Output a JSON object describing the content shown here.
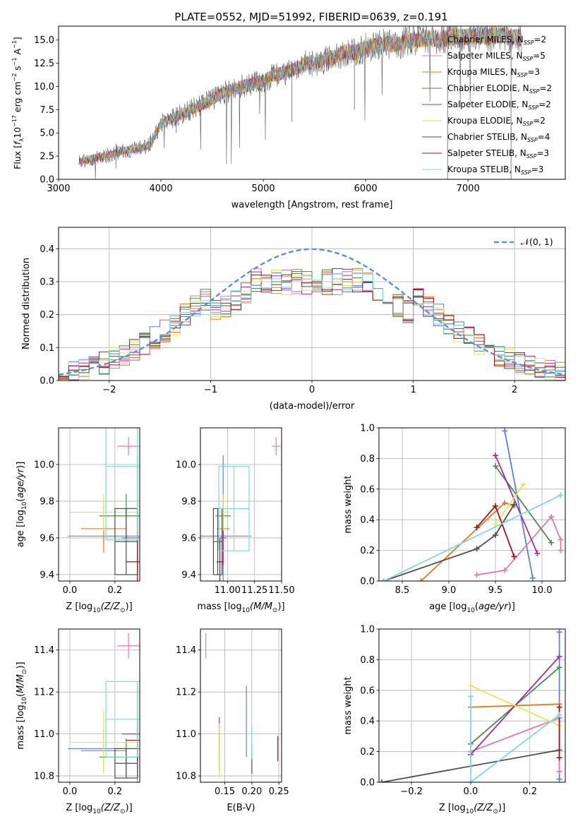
{
  "title": "PLATE=0552, MJD=51992, FIBERID=0639, z=0.191",
  "colors": {
    "Chabrier MILES": "#5b80d6",
    "Salpeter MILES": "#e47aa8",
    "Kroupa MILES": "#e07a22",
    "Chabrier ELODIE": "#4a8a50",
    "Salpeter ELODIE": "#9a30a8",
    "Kroupa ELODIE": "#dfe855",
    "Chabrier STELIB": "#4d4d4d",
    "Salpeter STELIB": "#a0141c",
    "Kroupa STELIB": "#7fd8dc",
    "normal": "#5b8fd6"
  },
  "chart_data": [
    {
      "type": "line",
      "panel": "spectrum",
      "xlabel": "wavelength [Angstrom, rest frame]",
      "ylabel": "Flux [f_λ 10^-17 erg cm^-2 s^-1 A^-1]",
      "xlim": [
        3000,
        7950
      ],
      "ylim": [
        0,
        16.5
      ],
      "xticks": [
        3000,
        4000,
        5000,
        6000,
        7000
      ],
      "yticks": [
        0.0,
        2.5,
        5.0,
        7.5,
        10.0,
        12.5,
        15.0
      ],
      "xtick_labels": [
        "3000",
        "4000",
        "5000",
        "6000",
        "7000"
      ],
      "ytick_labels": [
        "0.0",
        "2.5",
        "5.0",
        "7.5",
        "10.0",
        "12.5",
        "15.0"
      ],
      "spectrum_x": [
        3200,
        3300,
        3400,
        3500,
        3600,
        3700,
        3800,
        3900,
        4000,
        4100,
        4200,
        4300,
        4400,
        4500,
        4600,
        4700,
        4800,
        4900,
        5000,
        5100,
        5200,
        5300,
        5400,
        5500,
        5600,
        5700,
        5800,
        5900,
        6000,
        6100,
        6200,
        6300,
        6400,
        6500,
        6600,
        6700,
        6800,
        6900,
        7000,
        7100,
        7200,
        7300,
        7400
      ],
      "spectrum_y": [
        1.8,
        2.2,
        2.4,
        2.6,
        3.0,
        3.2,
        3.3,
        3.8,
        6.0,
        6.5,
        7.0,
        7.5,
        8.0,
        8.6,
        9.3,
        9.7,
        10.0,
        10.3,
        10.6,
        11.2,
        11.5,
        11.8,
        12.4,
        12.5,
        12.9,
        13.2,
        13.7,
        13.6,
        14.2,
        14.4,
        14.6,
        14.4,
        14.9,
        15.0,
        15.2,
        15.0,
        15.2,
        15.4,
        15.3,
        15.5,
        15.4,
        15.6,
        15.3
      ],
      "legend_location": "upper right",
      "legend": [
        {
          "label": "Chabrier MILES, N_SSP=2",
          "pre": "Chabrier MILES, N",
          "sub": "SSP",
          "post": "=2"
        },
        {
          "label": "Salpeter MILES, N_SSP=5",
          "pre": "Salpeter MILES, N",
          "sub": "SSP",
          "post": "=5"
        },
        {
          "label": "Kroupa MILES, N_SSP=3",
          "pre": "Kroupa MILES, N",
          "sub": "SSP",
          "post": "=3"
        },
        {
          "label": "Chabrier ELODIE, N_SSP=2",
          "pre": "Chabrier ELODIE, N",
          "sub": "SSP",
          "post": "=2"
        },
        {
          "label": "Salpeter ELODIE, N_SSP=2",
          "pre": "Salpeter ELODIE, N",
          "sub": "SSP",
          "post": "=2"
        },
        {
          "label": "Kroupa ELODIE, N_SSP=2",
          "pre": "Kroupa ELODIE, N",
          "sub": "SSP",
          "post": "=2"
        },
        {
          "label": "Chabrier STELIB, N_SSP=4",
          "pre": "Chabrier STELIB, N",
          "sub": "SSP",
          "post": "=4"
        },
        {
          "label": "Salpeter STELIB, N_SSP=3",
          "pre": "Salpeter STELIB, N",
          "sub": "SSP",
          "post": "=3"
        },
        {
          "label": "Kroupa STELIB, N_SSP=3",
          "pre": "Kroupa STELIB, N",
          "sub": "SSP",
          "post": "=3"
        }
      ]
    },
    {
      "type": "histogram",
      "panel": "residuals",
      "xlabel": "(data-model)/error",
      "ylabel": "Normed distribution",
      "xlim": [
        -2.5,
        2.5
      ],
      "ylim": [
        0,
        0.465
      ],
      "xticks": [
        -2,
        -1,
        0,
        1,
        2
      ],
      "yticks": [
        0.0,
        0.1,
        0.2,
        0.3,
        0.4
      ],
      "xtick_labels": [
        "−2",
        "−1",
        "0",
        "1",
        "2"
      ],
      "ytick_labels": [
        "0.0",
        "0.1",
        "0.2",
        "0.3",
        "0.4"
      ],
      "grid": true,
      "legend": "𝒩(0, 1)",
      "bin_width": 0.1
    },
    {
      "type": "scatter",
      "panel": "age-vs-Z",
      "xlabel_pre": "Z [log",
      "xlabel_sub": "10",
      "xlabel_post": "(Z/Z",
      "xlabel_end": ")]",
      "ylabel": "age  [log10(age/yr)]",
      "xlim": [
        -0.05,
        0.31
      ],
      "ylim": [
        9.365,
        10.2
      ],
      "xticks": [
        0.0,
        0.2
      ],
      "yticks": [
        9.4,
        9.6,
        9.8,
        10.0
      ],
      "xtick_labels": [
        "0.0",
        "0.2"
      ],
      "ytick_labels": [
        "9.4",
        "9.6",
        "9.8",
        "10.0"
      ],
      "points": [
        {
          "model": "Chabrier MILES",
          "x": 0.3,
          "y": 9.61,
          "xerr": 0.31,
          "yerr": 0.44
        },
        {
          "model": "Salpeter MILES",
          "x": 0.26,
          "y": 10.1,
          "xerr": 0.05,
          "yerr": 0.05
        },
        {
          "model": "Kroupa MILES",
          "x": 0.15,
          "y": 9.65,
          "xerr": 0.1,
          "yerr": 0.13
        },
        {
          "model": "Chabrier ELODIE",
          "x": 0.25,
          "y": 9.72,
          "xerr": 0.12,
          "yerr": 0.12
        },
        {
          "model": "Salpeter ELODIE",
          "x": 0.3,
          "y": 9.6,
          "xerr": 0.07,
          "yerr": 0.15
        },
        {
          "model": "Kroupa ELODIE",
          "x": 0.15,
          "y": 9.74,
          "xerr": 0.15,
          "yerr": 0.1
        },
        {
          "model": "Chabrier STELIB",
          "x": 0.25,
          "y": 9.58,
          "xerr": 0.05,
          "yerr": 0.18
        },
        {
          "model": "Salpeter STELIB",
          "x": 0.3,
          "y": 9.47,
          "xerr": 0.05,
          "yerr": 0.27
        },
        {
          "model": "Kroupa STELIB",
          "x": 0.3,
          "y": 9.99,
          "xerr": 0.14,
          "yerr": 0.4
        }
      ]
    },
    {
      "type": "scatter",
      "panel": "age-vs-mass",
      "xlabel_pre": "mass [log",
      "xlabel_sub": "10",
      "xlabel_post": "(M/M",
      "xlabel_end": ")]",
      "xlim": [
        10.75,
        11.5
      ],
      "ylim": [
        9.365,
        10.2
      ],
      "xticks": [
        11.0,
        11.25,
        11.5
      ],
      "yticks": [
        9.4,
        9.6,
        9.8,
        10.0
      ],
      "xtick_labels": [
        "11.00",
        "11.25",
        "11.50"
      ],
      "ytick_labels": [
        "9.4",
        "9.6",
        "9.8",
        "10.0"
      ],
      "points": [
        {
          "model": "Chabrier MILES",
          "x": 10.96,
          "y": 9.61,
          "xerr": 0.26,
          "yerr": 0.44
        },
        {
          "model": "Salpeter MILES",
          "x": 11.45,
          "y": 10.1,
          "xerr": 0.04,
          "yerr": 0.05
        },
        {
          "model": "Kroupa MILES",
          "x": 10.96,
          "y": 9.65,
          "xerr": 0.06,
          "yerr": 0.13
        },
        {
          "model": "Chabrier ELODIE",
          "x": 10.96,
          "y": 9.72,
          "xerr": 0.07,
          "yerr": 0.12
        },
        {
          "model": "Salpeter ELODIE",
          "x": 10.96,
          "y": 9.6,
          "xerr": 0.03,
          "yerr": 0.15
        },
        {
          "model": "Kroupa ELODIE",
          "x": 10.96,
          "y": 9.74,
          "xerr": 0.06,
          "yerr": 0.1
        },
        {
          "model": "Chabrier STELIB",
          "x": 10.91,
          "y": 9.58,
          "xerr": 0.04,
          "yerr": 0.18
        },
        {
          "model": "Salpeter STELIB",
          "x": 10.93,
          "y": 9.47,
          "xerr": 0.03,
          "yerr": 0.13
        },
        {
          "model": "Kroupa STELIB",
          "x": 11.06,
          "y": 9.76,
          "xerr": 0.14,
          "yerr": 0.23
        }
      ]
    },
    {
      "type": "line",
      "panel": "mass-weight-vs-age",
      "xlabel": "age  [log10(age/yr)]",
      "ylabel": "mass weight",
      "xlim": [
        8.25,
        10.25
      ],
      "ylim": [
        0,
        1.0
      ],
      "xticks": [
        8.5,
        9.0,
        9.5,
        10.0
      ],
      "yticks": [
        0.0,
        0.2,
        0.4,
        0.6,
        0.8,
        1.0
      ],
      "xtick_labels": [
        "8.5",
        "9.0",
        "9.5",
        "10.0"
      ],
      "ytick_labels": [
        "0.0",
        "0.2",
        "0.4",
        "0.6",
        "0.8",
        "1.0"
      ],
      "grid": true,
      "series": [
        {
          "model": "Chabrier MILES",
          "x": [
            9.6,
            9.9
          ],
          "y": [
            0.98,
            0.02
          ]
        },
        {
          "model": "Salpeter MILES",
          "x": [
            9.3,
            9.6,
            10.1,
            10.2,
            10.2
          ],
          "y": [
            0.04,
            0.07,
            0.42,
            0.27,
            0.2
          ]
        },
        {
          "model": "Kroupa MILES",
          "x": [
            8.7,
            9.6,
            9.7
          ],
          "y": [
            0.0,
            0.51,
            0.49
          ]
        },
        {
          "model": "Chabrier ELODIE",
          "x": [
            9.5,
            10.1
          ],
          "y": [
            0.75,
            0.25
          ]
        },
        {
          "model": "Salpeter ELODIE",
          "x": [
            9.5,
            9.95
          ],
          "y": [
            0.82,
            0.18
          ]
        },
        {
          "model": "Kroupa ELODIE",
          "x": [
            9.5,
            9.8
          ],
          "y": [
            0.37,
            0.63
          ]
        },
        {
          "model": "Chabrier STELIB",
          "x": [
            8.3,
            9.3,
            9.5,
            9.7
          ],
          "y": [
            0.0,
            0.21,
            0.3,
            0.5
          ]
        },
        {
          "model": "Salpeter STELIB",
          "x": [
            9.3,
            9.5,
            9.7
          ],
          "y": [
            0.35,
            0.49,
            0.16
          ]
        },
        {
          "model": "Kroupa STELIB",
          "x": [
            8.3,
            10.2
          ],
          "y": [
            0.0,
            0.56
          ]
        }
      ]
    },
    {
      "type": "scatter",
      "panel": "mass-vs-Z",
      "xlabel_pre": "Z [log",
      "xlabel_sub": "10",
      "xlabel_post": "(Z/Z",
      "xlabel_end": ")]",
      "ylabel": "mass [log10(M/M☉)]",
      "xlim": [
        -0.05,
        0.31
      ],
      "ylim": [
        10.77,
        11.5
      ],
      "xticks": [
        0.0,
        0.2
      ],
      "yticks": [
        10.8,
        11.0,
        11.2,
        11.4
      ],
      "xtick_labels": [
        "0.0",
        "0.2"
      ],
      "ytick_labels": [
        "10.8",
        "11.0",
        "11.2",
        "11.4"
      ],
      "points": [
        {
          "model": "Chabrier MILES",
          "x": 0.3,
          "y": 10.93,
          "xerr": 0.31,
          "yerr": 0.3
        },
        {
          "model": "Salpeter MILES",
          "x": 0.26,
          "y": 11.42,
          "xerr": 0.05,
          "yerr": 0.06
        },
        {
          "model": "Kroupa MILES",
          "x": 0.15,
          "y": 10.92,
          "xerr": 0.1,
          "yerr": 0.1
        },
        {
          "model": "Chabrier ELODIE",
          "x": 0.25,
          "y": 10.89,
          "xerr": 0.12,
          "yerr": 0.09
        },
        {
          "model": "Salpeter ELODIE",
          "x": 0.3,
          "y": 11.0,
          "xerr": 0.07,
          "yerr": 0.08
        },
        {
          "model": "Kroupa ELODIE",
          "x": 0.15,
          "y": 10.96,
          "xerr": 0.15,
          "yerr": 0.15
        },
        {
          "model": "Chabrier STELIB",
          "x": 0.25,
          "y": 10.86,
          "xerr": 0.05,
          "yerr": 0.07
        },
        {
          "model": "Salpeter STELIB",
          "x": 0.3,
          "y": 10.97,
          "xerr": 0.05,
          "yerr": 0.1
        },
        {
          "model": "Kroupa STELIB",
          "x": 0.3,
          "y": 11.07,
          "xerr": 0.14,
          "yerr": 0.18
        }
      ]
    },
    {
      "type": "scatter",
      "panel": "mass-vs-EBV",
      "xlabel": "E(B-V)",
      "xlim": [
        0.105,
        0.255
      ],
      "ylim": [
        10.77,
        11.5
      ],
      "xticks": [
        0.15,
        0.2,
        0.25
      ],
      "yticks": [
        10.8,
        11.0,
        11.2,
        11.4
      ],
      "xtick_labels": [
        "0.15",
        "0.20",
        "0.25"
      ],
      "ytick_labels": [
        "10.8",
        "11.0",
        "11.2",
        "11.4"
      ],
      "points": [
        {
          "model": "Chabrier MILES",
          "x": 0.19,
          "y": 11.06,
          "xerr": 0.0,
          "yerr": 0.17
        },
        {
          "model": "Salpeter MILES",
          "x": 0.115,
          "y": 11.42,
          "xerr": 0.0,
          "yerr": 0.06
        },
        {
          "model": "Kroupa MILES",
          "x": 0.14,
          "y": 10.94,
          "xerr": 0.0,
          "yerr": 0.11
        },
        {
          "model": "Chabrier ELODIE",
          "x": 0.14,
          "y": 10.93,
          "xerr": 0.0,
          "yerr": 0.11
        },
        {
          "model": "Salpeter ELODIE",
          "x": 0.14,
          "y": 10.98,
          "xerr": 0.0,
          "yerr": 0.1
        },
        {
          "model": "Kroupa ELODIE",
          "x": 0.14,
          "y": 10.92,
          "xerr": 0.0,
          "yerr": 0.13
        },
        {
          "model": "Chabrier STELIB",
          "x": 0.2,
          "y": 10.88,
          "xerr": 0.0,
          "yerr": 0.07
        },
        {
          "model": "Salpeter STELIB",
          "x": 0.248,
          "y": 10.93,
          "xerr": 0.0,
          "yerr": 0.06
        },
        {
          "model": "Kroupa STELIB",
          "x": 0.2,
          "y": 10.96,
          "xerr": 0.0,
          "yerr": 0.08
        }
      ]
    },
    {
      "type": "line",
      "panel": "mass-weight-vs-Z",
      "xlabel_pre": "Z [log",
      "xlabel_sub": "10",
      "xlabel_post": "(Z/Z",
      "xlabel_end": ")]",
      "ylabel": "mass weight",
      "xlim": [
        -0.31,
        0.32
      ],
      "ylim": [
        0,
        1.0
      ],
      "xticks": [
        -0.2,
        0.0,
        0.2
      ],
      "yticks": [
        0.0,
        0.2,
        0.4,
        0.6,
        0.8,
        1.0
      ],
      "xtick_labels": [
        "−0.2",
        "0.0",
        "0.2"
      ],
      "ytick_labels": [
        "0.0",
        "0.2",
        "0.4",
        "0.6",
        "0.8",
        "1.0"
      ],
      "grid": true,
      "series": [
        {
          "model": "Chabrier MILES",
          "x": [
            0.3,
            0.3
          ],
          "y": [
            0.98,
            0.02
          ]
        },
        {
          "model": "Salpeter MILES",
          "x": [
            0.0,
            0.3,
            0.3
          ],
          "y": [
            0.2,
            0.42,
            0.07
          ]
        },
        {
          "model": "Kroupa MILES",
          "x": [
            0.0,
            0.3
          ],
          "y": [
            0.49,
            0.51
          ]
        },
        {
          "model": "Chabrier ELODIE",
          "x": [
            0.0,
            0.3
          ],
          "y": [
            0.25,
            0.75
          ]
        },
        {
          "model": "Salpeter ELODIE",
          "x": [
            0.0,
            0.3
          ],
          "y": [
            0.18,
            0.82
          ]
        },
        {
          "model": "Kroupa ELODIE",
          "x": [
            0.0,
            0.3
          ],
          "y": [
            0.63,
            0.37
          ]
        },
        {
          "model": "Chabrier STELIB",
          "x": [
            -0.3,
            0.3
          ],
          "y": [
            0.0,
            0.21
          ]
        },
        {
          "model": "Salpeter STELIB",
          "x": [
            0.3,
            0.3
          ],
          "y": [
            0.49,
            0.16
          ]
        },
        {
          "model": "Kroupa STELIB",
          "x": [
            0.0,
            0.0,
            0.3
          ],
          "y": [
            0.56,
            0.0,
            0.44
          ]
        }
      ]
    }
  ]
}
